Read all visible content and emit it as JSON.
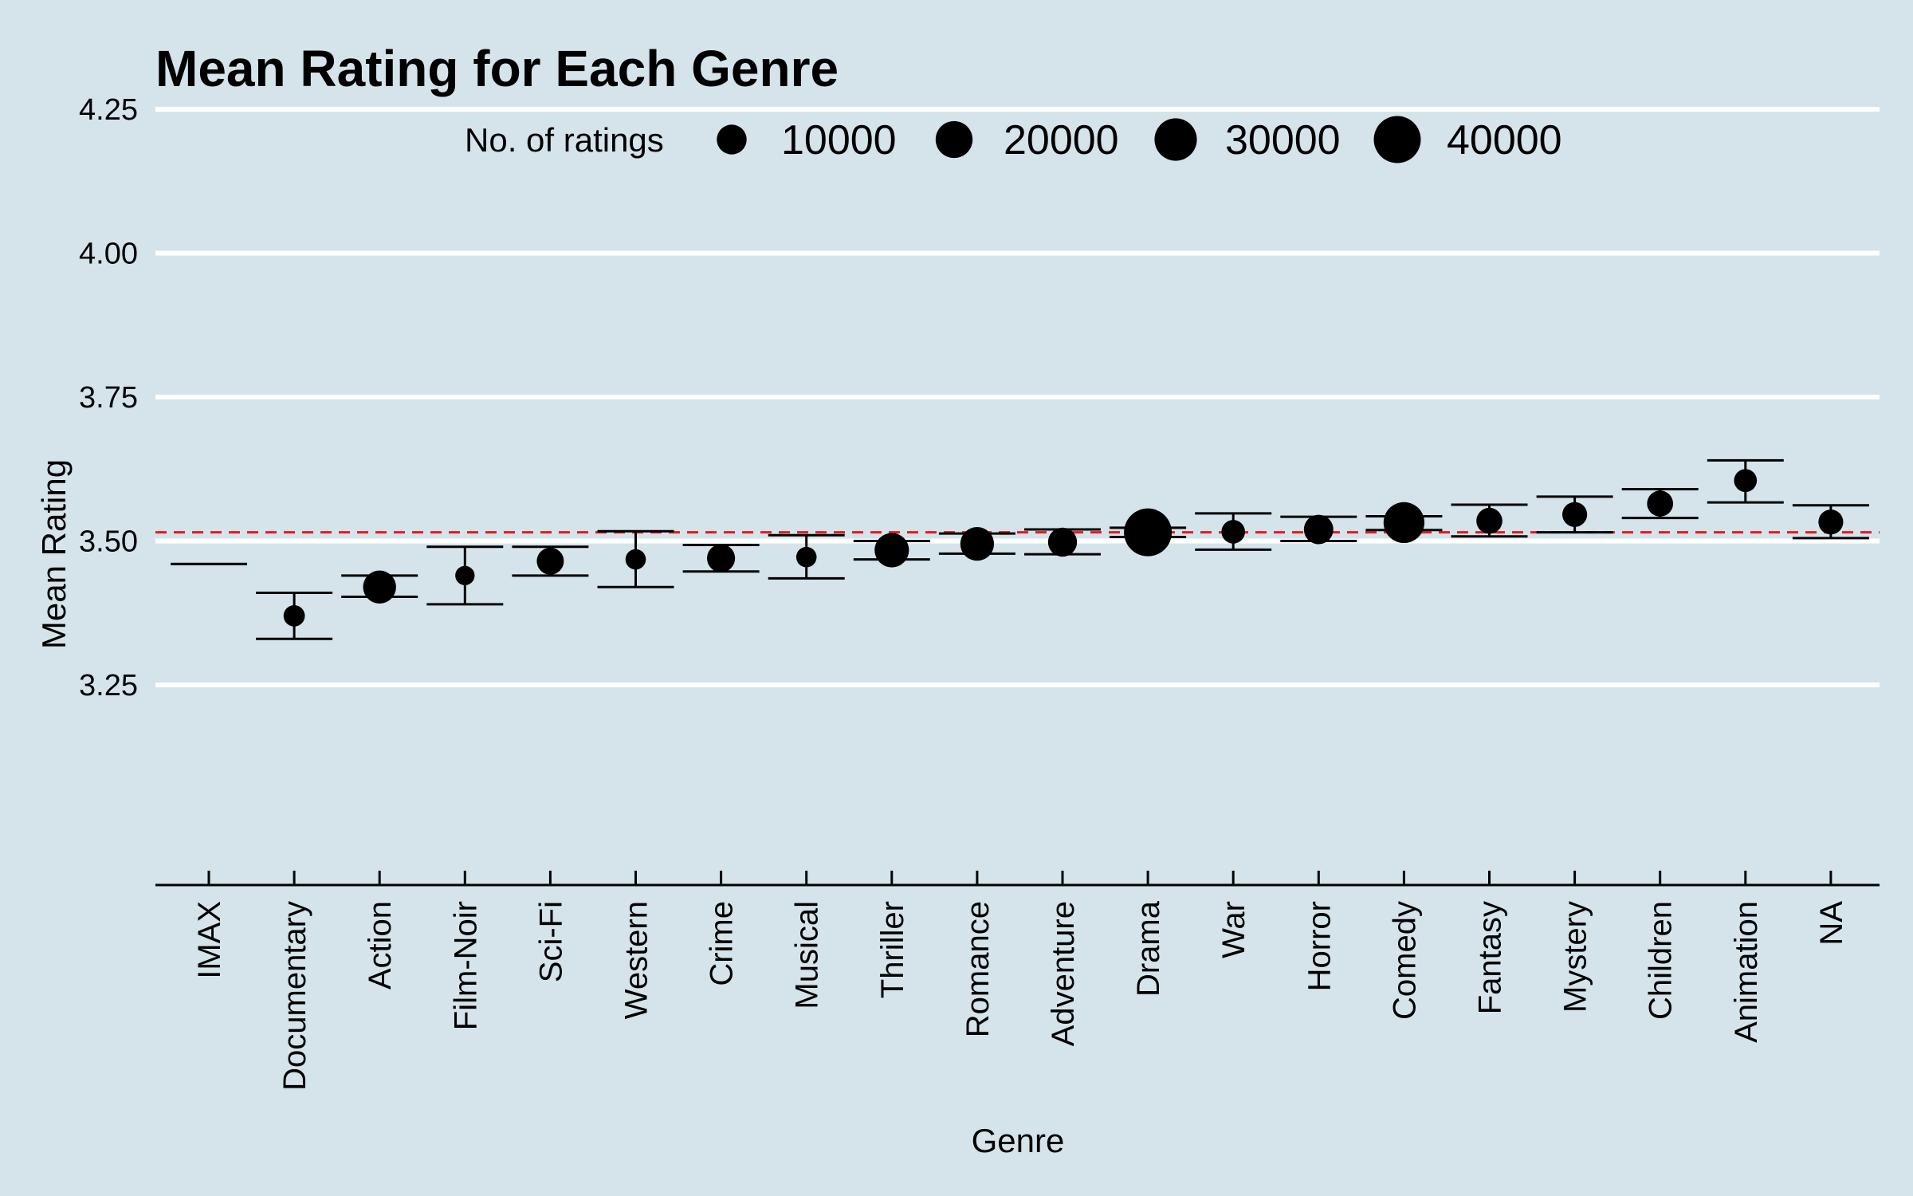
{
  "chart_data": {
    "type": "scatter",
    "title": "Mean Rating for Each Genre",
    "xlabel": "Genre",
    "ylabel": "Mean Rating",
    "ylim": [
      3.15,
      4.35
    ],
    "yticks": [
      "3.25",
      "3.50",
      "3.75",
      "4.00",
      "4.25"
    ],
    "grid": "horizontal",
    "legend": {
      "title": "No. of ratings",
      "placement": "top",
      "entries": [
        {
          "label": "10000",
          "value": 10000
        },
        {
          "label": "20000",
          "value": 20000
        },
        {
          "label": "30000",
          "value": 30000
        },
        {
          "label": "40000",
          "value": 40000
        }
      ]
    },
    "reference_line": {
      "y": 3.515,
      "color": "#e41a1c",
      "style": "dashed"
    },
    "colors": {
      "background": "#d5e4eb",
      "grid": "#ffffff",
      "points": "#000000"
    },
    "categories": [
      "IMAX",
      "Documentary",
      "Action",
      "Film-Noir",
      "Sci-Fi",
      "Western",
      "Crime",
      "Musical",
      "Thriller",
      "Romance",
      "Adventure",
      "Drama",
      "War",
      "Horror",
      "Comedy",
      "Fantasy",
      "Mystery",
      "Children",
      "Animation",
      "NA"
    ],
    "series": [
      {
        "values": [
          3.46,
          3.37,
          3.42,
          3.44,
          3.465,
          3.468,
          3.47,
          3.472,
          3.484,
          3.495,
          3.498,
          3.515,
          3.516,
          3.52,
          3.532,
          3.535,
          3.546,
          3.565,
          3.605,
          3.533
        ],
        "lower": [
          3.46,
          3.33,
          3.403,
          3.39,
          3.44,
          3.42,
          3.447,
          3.435,
          3.468,
          3.478,
          3.477,
          3.507,
          3.485,
          3.5,
          3.519,
          3.508,
          3.515,
          3.54,
          3.567,
          3.505
        ],
        "upper": [
          3.46,
          3.41,
          3.44,
          3.49,
          3.49,
          3.517,
          3.493,
          3.51,
          3.5,
          3.513,
          3.52,
          3.523,
          3.548,
          3.542,
          3.543,
          3.563,
          3.577,
          3.59,
          3.64,
          3.562
        ],
        "counts": [
          0,
          2500,
          14000,
          1500,
          7000,
          2000,
          8000,
          2000,
          16000,
          15000,
          9000,
          42000,
          4000,
          9500,
          27000,
          6000,
          5000,
          6000,
          3500,
          5000
        ]
      }
    ]
  }
}
